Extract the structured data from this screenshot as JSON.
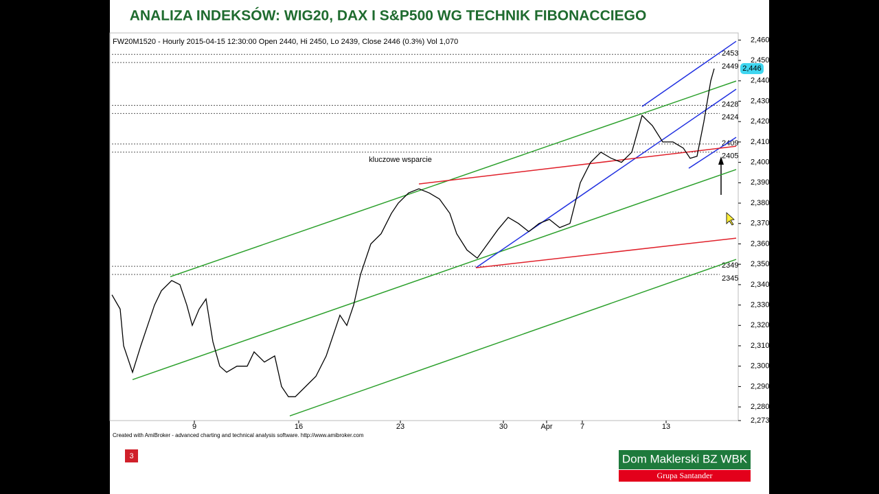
{
  "title": "ANALIZA INDEKSÓW: WIG20, DAX I S&P500 WG TECHNIK FIBONACCIEGO",
  "slide_number": "3",
  "logo": {
    "name": "Dom Maklerski BZ WBK",
    "group": "Grupa Santander"
  },
  "chart_data": {
    "type": "line",
    "title": "FW20M1520 - Hourly 2015-04-15 12:30:00 Open 2440, Hi 2450, Lo 2439, Close 2446 (0.3%) Vol 1,070",
    "annotation": "kluczowe wsparcie",
    "footer": "Created with AmiBroker - advanced charting and technical analysis software. http://www.amibroker.com",
    "color": "#000000",
    "x": [
      0,
      12,
      17,
      30,
      42,
      52,
      62,
      72,
      87,
      99,
      109,
      117,
      127,
      137,
      147,
      157,
      167,
      182,
      197,
      207,
      222,
      237,
      247,
      257,
      267,
      282,
      297,
      312,
      322,
      332,
      342,
      352,
      362,
      377,
      392,
      407,
      417,
      432,
      447,
      462,
      477,
      492,
      502,
      517,
      532,
      547,
      562,
      577,
      592,
      607,
      622,
      637,
      652,
      667,
      682,
      697,
      712,
      727,
      742,
      757,
      772,
      787,
      802,
      817,
      832,
      842,
      852,
      862,
      872,
      877
    ],
    "values": [
      2335,
      2328,
      2310,
      2297,
      2310,
      2320,
      2330,
      2337,
      2342,
      2340,
      2330,
      2320,
      2328,
      2333,
      2312,
      2300,
      2297,
      2300,
      2300,
      2307,
      2302,
      2305,
      2290,
      2285,
      2285,
      2290,
      2295,
      2305,
      2315,
      2325,
      2320,
      2330,
      2345,
      2360,
      2365,
      2375,
      2380,
      2385,
      2387,
      2385,
      2382,
      2375,
      2365,
      2357,
      2353,
      2360,
      2367,
      2373,
      2370,
      2366,
      2370,
      2372,
      2368,
      2370,
      2390,
      2400,
      2405,
      2402,
      2400,
      2405,
      2423,
      2418,
      2410,
      2410,
      2407,
      2402,
      2403,
      2420,
      2440,
      2446
    ],
    "last_value": {
      "value": 2446,
      "label": "2,446"
    },
    "xlim": [
      0,
      912
    ],
    "xticks": [
      {
        "value": 120,
        "label": "9"
      },
      {
        "value": 272,
        "label": "16"
      },
      {
        "value": 420,
        "label": "23"
      },
      {
        "value": 570,
        "label": "30"
      },
      {
        "value": 633,
        "label": "Apr"
      },
      {
        "value": 685,
        "label": "7"
      },
      {
        "value": 807,
        "label": "13"
      }
    ],
    "ylim": [
      2273.3,
      2463.5
    ],
    "yticks": [
      {
        "value": 2273.3,
        "label": "2,273"
      },
      {
        "value": 2280,
        "label": "2,280"
      },
      {
        "value": 2290,
        "label": "2,290"
      },
      {
        "value": 2300,
        "label": "2,300"
      },
      {
        "value": 2310,
        "label": "2,310"
      },
      {
        "value": 2320,
        "label": "2,320"
      },
      {
        "value": 2330,
        "label": "2,330"
      },
      {
        "value": 2340,
        "label": "2,340"
      },
      {
        "value": 2350,
        "label": "2,350"
      },
      {
        "value": 2360,
        "label": "2,360"
      },
      {
        "value": 2370,
        "label": "2,370"
      },
      {
        "value": 2380,
        "label": "2,380"
      },
      {
        "value": 2390,
        "label": "2,390"
      },
      {
        "value": 2400,
        "label": "2,400"
      },
      {
        "value": 2410,
        "label": "2,410"
      },
      {
        "value": 2420,
        "label": "2,420"
      },
      {
        "value": 2430,
        "label": "2,430"
      },
      {
        "value": 2440,
        "label": "2,440"
      },
      {
        "value": 2450,
        "label": "2,450"
      },
      {
        "value": 2460,
        "label": "2,460"
      }
    ],
    "levels": [
      2453,
      2449,
      2428,
      2424,
      2409,
      2405,
      2349,
      2345
    ],
    "trendlines": [
      {
        "color": "#2ca02c",
        "x": [
          85,
          909
        ],
        "values": [
          2343.9,
          2439.9
        ]
      },
      {
        "color": "#2ca02c",
        "x": [
          30,
          909
        ],
        "values": [
          2293.4,
          2396.5
        ]
      },
      {
        "color": "#2ca02c",
        "x": [
          259,
          909
        ],
        "values": [
          2275.6,
          2352.4
        ]
      },
      {
        "color": "#1f2fe0",
        "x": [
          530,
          909
        ],
        "values": [
          2348.3,
          2435.9
        ]
      },
      {
        "color": "#1f2fe0",
        "x": [
          772,
          909
        ],
        "values": [
          2427.4,
          2459.4
        ]
      },
      {
        "color": "#1f2fe0",
        "x": [
          840,
          909
        ],
        "values": [
          2397.1,
          2412.3
        ]
      },
      {
        "color": "#e0202a",
        "x": [
          447,
          909
        ],
        "values": [
          2389.4,
          2407.9
        ]
      },
      {
        "color": "#e0202a",
        "x": [
          530,
          909
        ],
        "values": [
          2348.3,
          2362.8
        ]
      }
    ]
  }
}
